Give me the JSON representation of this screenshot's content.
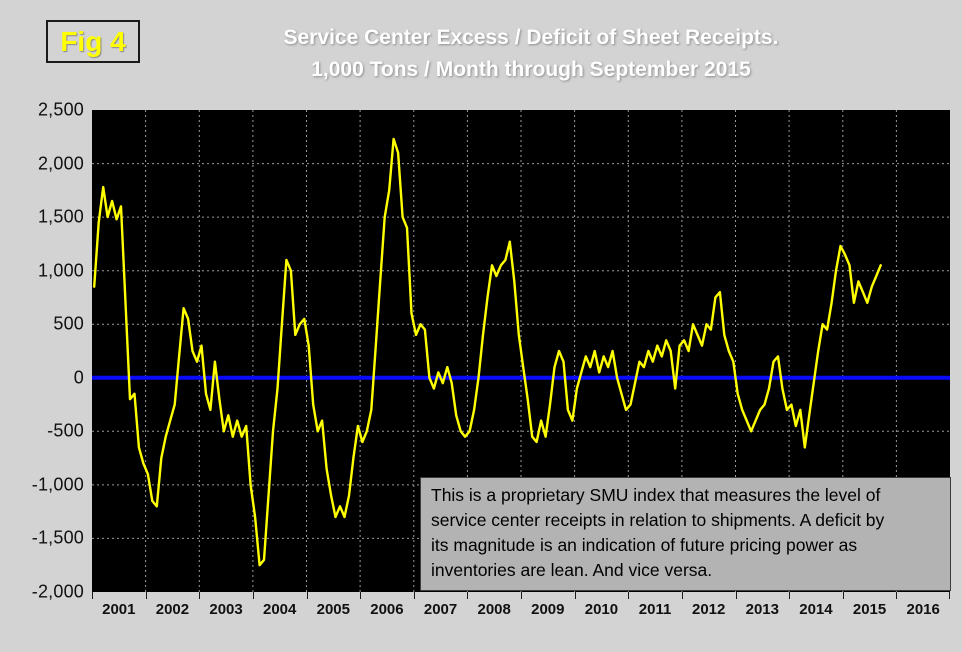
{
  "header": {
    "fig_label": "Fig 4",
    "title_line1": "Service Center Excess / Deficit of Sheet Receipts.",
    "title_line2": "1,000 Tons / Month through September 2015"
  },
  "annotation": {
    "lines": [
      "This is a proprietary SMU index that measures the level of",
      "service center receipts in relation to shipments. A deficit by",
      "its magnitude is an indication of future pricing power as",
      "inventories are lean. And vice versa."
    ]
  },
  "chart_data": {
    "type": "line",
    "title": "Service Center Excess / Deficit of Sheet Receipts. 1,000 Tons / Month through September 2015",
    "xlabel": "",
    "ylabel": "",
    "ylim": [
      -2000,
      2500
    ],
    "ytick_step": 500,
    "ytick_labels": [
      "2,500",
      "2,000",
      "1,500",
      "1,000",
      "500",
      "0",
      "-500",
      "-1,000",
      "-1,500",
      "-2,000"
    ],
    "x_years": [
      "2001",
      "2002",
      "2003",
      "2004",
      "2005",
      "2006",
      "2007",
      "2008",
      "2009",
      "2010",
      "2011",
      "2012",
      "2013",
      "2014",
      "2015",
      "2016"
    ],
    "start_year": 2001,
    "end_month": "September 2015",
    "grid": "dotted",
    "legend": "none",
    "background_color": "#000000",
    "line_color": "#ffff00",
    "zero_line_color": "#0a0aff",
    "series_name": "Service Center Excess / Deficit (1,000 tons/month)",
    "values": [
      850,
      1450,
      1780,
      1500,
      1650,
      1480,
      1600,
      700,
      -200,
      -150,
      -650,
      -800,
      -900,
      -1150,
      -1200,
      -750,
      -550,
      -400,
      -250,
      200,
      650,
      550,
      250,
      150,
      300,
      -150,
      -300,
      150,
      -200,
      -500,
      -350,
      -550,
      -400,
      -550,
      -450,
      -1000,
      -1300,
      -1750,
      -1700,
      -1100,
      -500,
      -100,
      500,
      1100,
      1000,
      400,
      500,
      550,
      300,
      -250,
      -500,
      -400,
      -850,
      -1100,
      -1300,
      -1200,
      -1300,
      -1100,
      -750,
      -450,
      -600,
      -500,
      -300,
      300,
      900,
      1500,
      1750,
      2230,
      2100,
      1500,
      1400,
      600,
      400,
      500,
      450,
      0,
      -100,
      50,
      -50,
      100,
      -50,
      -350,
      -500,
      -550,
      -500,
      -300,
      0,
      400,
      750,
      1050,
      950,
      1050,
      1100,
      1270,
      900,
      400,
      100,
      -200,
      -550,
      -600,
      -400,
      -550,
      -250,
      100,
      250,
      150,
      -300,
      -400,
      -100,
      50,
      200,
      100,
      250,
      50,
      200,
      100,
      250,
      0,
      -150,
      -300,
      -250,
      -50,
      150,
      100,
      250,
      150,
      300,
      200,
      350,
      250,
      -100,
      300,
      350,
      250,
      500,
      400,
      300,
      500,
      450,
      750,
      800,
      400,
      250,
      150,
      -150,
      -300,
      -400,
      -500,
      -400,
      -300,
      -250,
      -100,
      150,
      200,
      -100,
      -300,
      -250,
      -450,
      -300,
      -650,
      -350,
      -50,
      250,
      500,
      450,
      700,
      1000,
      1230,
      1150,
      1050,
      700,
      900,
      800,
      700,
      850,
      950,
      1050
    ]
  }
}
